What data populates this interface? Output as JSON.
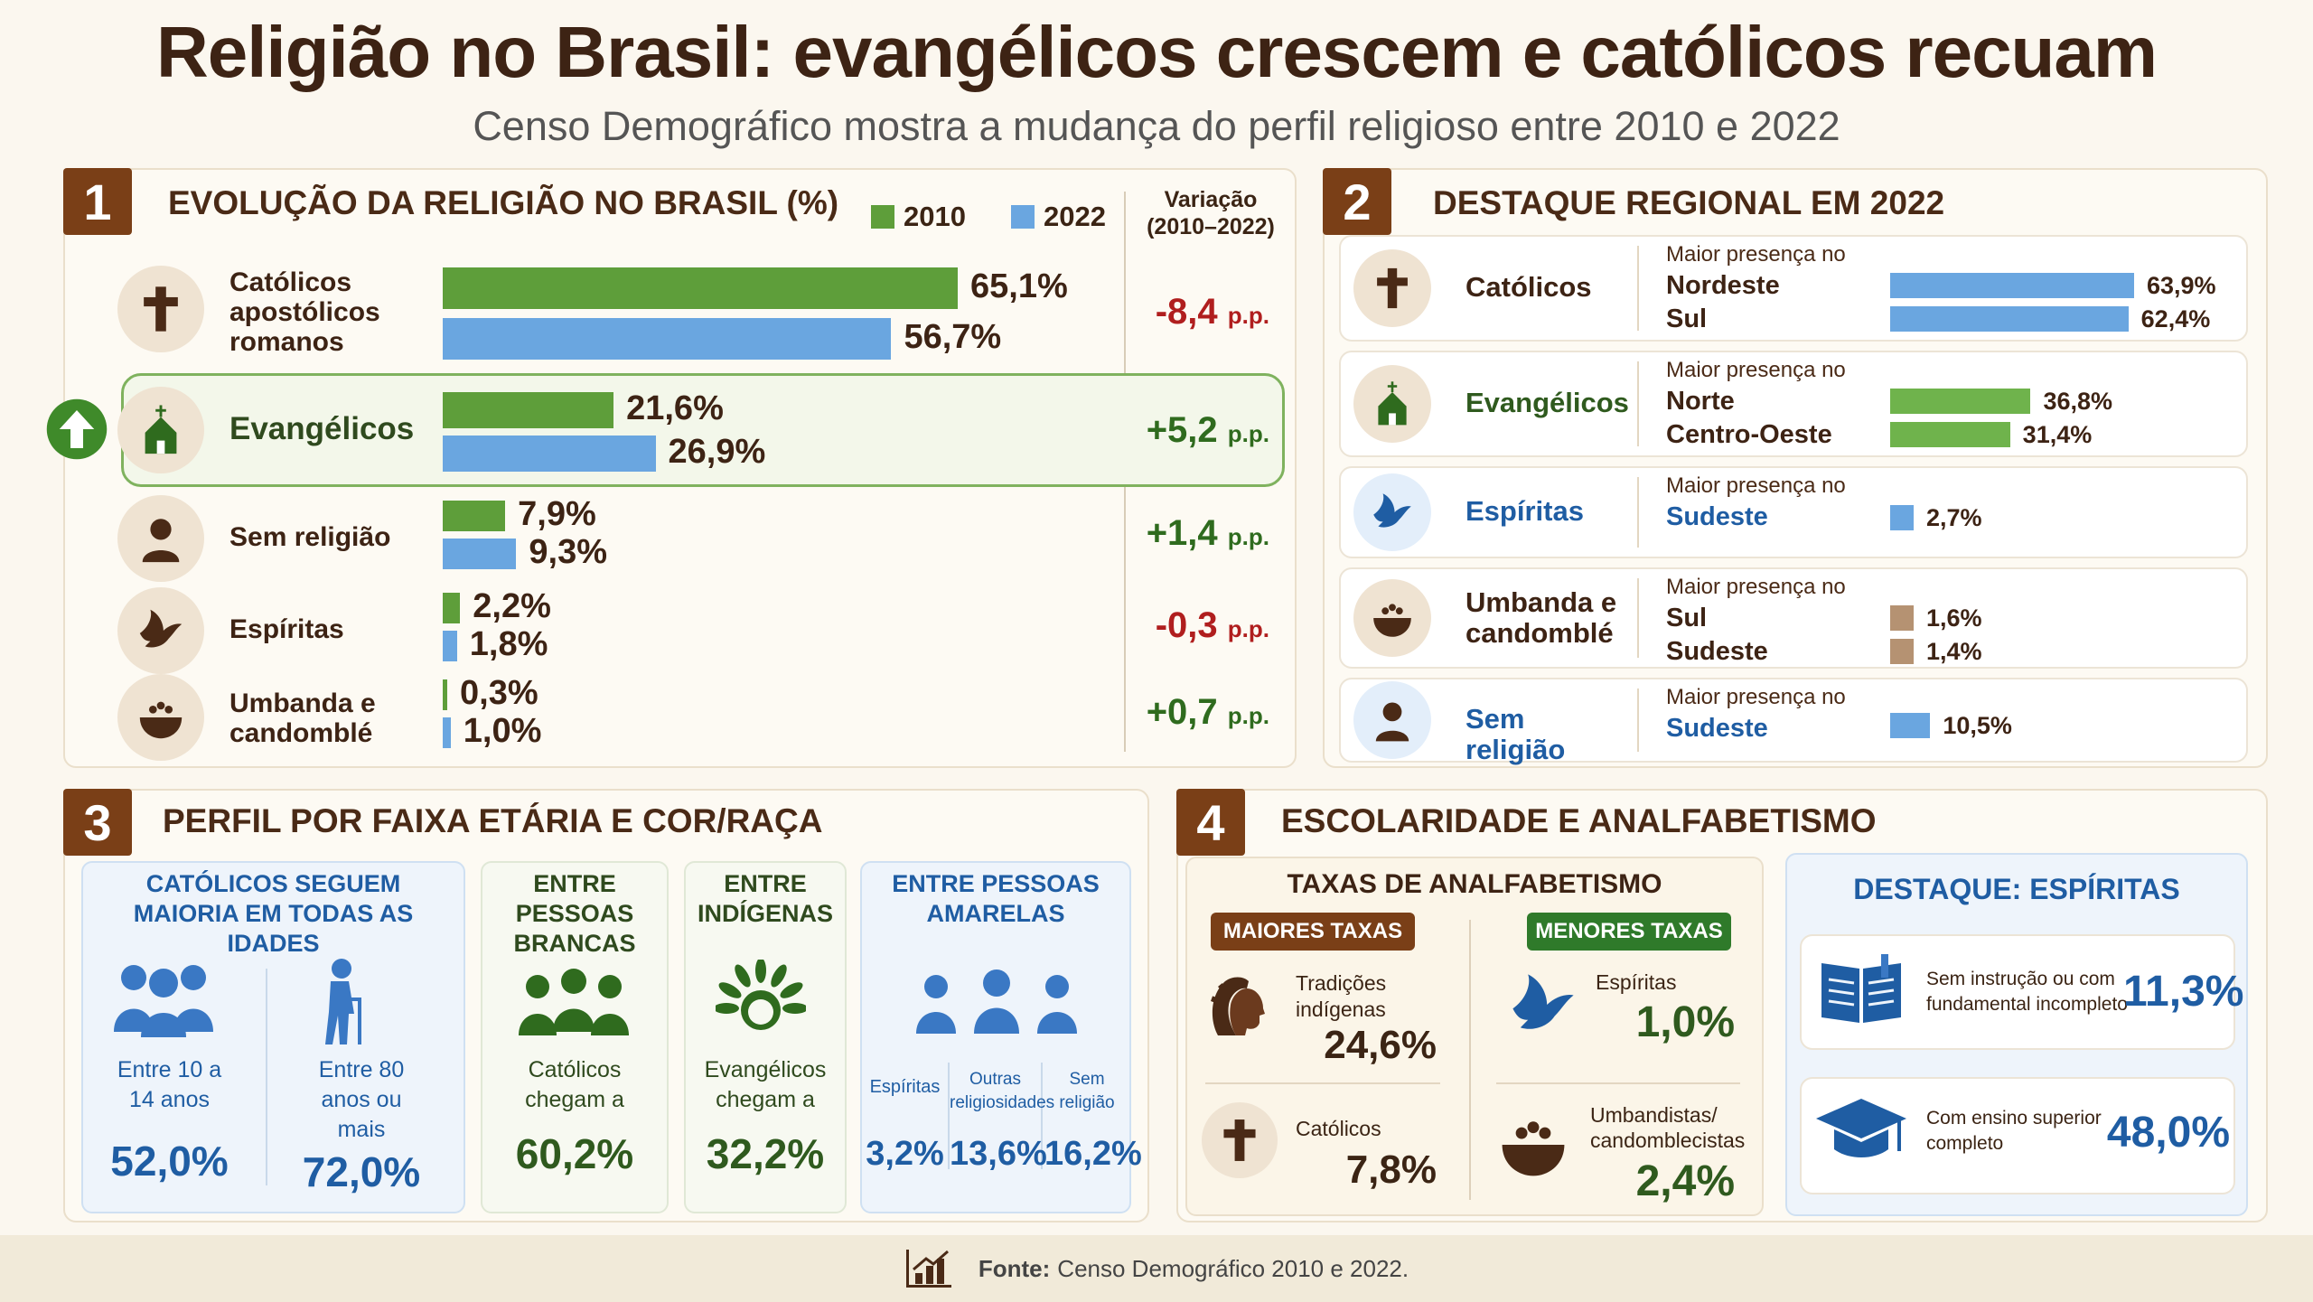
{
  "title": "Religião no Brasil: evangélicos crescem e católicos recuam",
  "subtitle": "Censo Demográfico mostra a mudança do perfil religioso entre 2010 e 2022",
  "colors": {
    "y2010": "#5e9e3a",
    "y2022": "#6aa6e0",
    "negative": "#b01e1e",
    "positive": "#2f6b1e",
    "brown": "#7a3f17",
    "tan": "#b59272"
  },
  "panel1": {
    "number": "1",
    "title": "EVOLUÇÃO DA RELIGIÃO NO BRASIL (%)",
    "legend_2010": "2010",
    "legend_2022": "2022",
    "variation_header": "Variação",
    "variation_sub": "(2010–2022)",
    "rows": [
      {
        "label": "Católicos apostólicos romanos",
        "label_lines": [
          "Católicos",
          "apostólicos",
          "romanos"
        ],
        "icon": "cross-icon",
        "v2010": "65,1%",
        "v2022": "56,7%",
        "variation": "-8,4",
        "unit": "p.p."
      },
      {
        "label": "Evangélicos",
        "label_lines": [
          "Evangélicos"
        ],
        "icon": "church-icon",
        "v2010": "21,6%",
        "v2022": "26,9%",
        "variation": "+5,2",
        "unit": "p.p."
      },
      {
        "label": "Sem religião",
        "label_lines": [
          "Sem religião"
        ],
        "icon": "person-icon",
        "v2010": "7,9%",
        "v2022": "9,3%",
        "variation": "+1,4",
        "unit": "p.p."
      },
      {
        "label": "Espíritas",
        "label_lines": [
          "Espíritas"
        ],
        "icon": "dove-icon",
        "v2010": "2,2%",
        "v2022": "1,8%",
        "variation": "-0,3",
        "unit": "p.p."
      },
      {
        "label": "Umbanda e candomblé",
        "label_lines": [
          "Umbanda e",
          "candomblé"
        ],
        "icon": "offering-bowl-icon",
        "v2010": "0,3%",
        "v2022": "1,0%",
        "variation": "+0,7",
        "unit": "p.p."
      }
    ]
  },
  "chart_data": {
    "type": "bar",
    "title": "EVOLUÇÃO DA RELIGIÃO NO BRASIL (%)",
    "categories": [
      "Católicos apostólicos romanos",
      "Evangélicos",
      "Sem religião",
      "Espíritas",
      "Umbanda e candomblé"
    ],
    "series": [
      {
        "name": "2010",
        "values": [
          65.1,
          21.6,
          7.9,
          2.2,
          0.3
        ]
      },
      {
        "name": "2022",
        "values": [
          56.7,
          26.9,
          9.3,
          1.8,
          1.0
        ]
      }
    ],
    "variation_pp": [
      -8.4,
      5.2,
      1.4,
      -0.3,
      0.7
    ],
    "legend": "top-right",
    "grid": false
  },
  "panel2": {
    "number": "2",
    "title": "DESTAQUE REGIONAL EM 2022",
    "intro": "Maior presença no",
    "rows": [
      {
        "label": "Católicos",
        "icon": "cross-icon",
        "regions": [
          "Nordeste",
          "Sul"
        ],
        "values": [
          "63,9%",
          "62,4%"
        ],
        "nums": [
          63.9,
          62.4
        ],
        "color": "#6aa6e0",
        "label_color": "#3d2314"
      },
      {
        "label": "Evangélicos",
        "icon": "church-icon",
        "regions": [
          "Norte",
          "Centro-Oeste"
        ],
        "values": [
          "36,8%",
          "31,4%"
        ],
        "nums": [
          36.8,
          31.4
        ],
        "color": "#6fb34c",
        "label_color": "#2f5a1e"
      },
      {
        "label": "Espíritas",
        "icon": "dove-icon",
        "regions": [
          "Sudeste"
        ],
        "values": [
          "2,7%"
        ],
        "nums": [
          2.7
        ],
        "color": "#6aa6e0",
        "label_color": "#1f5da3"
      },
      {
        "label": "Umbanda e candomblé",
        "icon": "offering-bowl-icon",
        "regions": [
          "Sul",
          "Sudeste"
        ],
        "values": [
          "1,6%",
          "1,4%"
        ],
        "nums": [
          1.6,
          1.4
        ],
        "color": "#b59272",
        "label_color": "#3d2314"
      },
      {
        "label": "Sem religião",
        "icon": "person-icon",
        "regions": [
          "Sudeste"
        ],
        "values": [
          "10,5%"
        ],
        "nums": [
          10.5
        ],
        "color": "#6aa6e0",
        "label_color": "#1f5da3"
      }
    ]
  },
  "panel3": {
    "number": "3",
    "title": "PERFIL POR FAIXA ETÁRIA E COR/RAÇA",
    "box1": {
      "title": "CATÓLICOS SEGUEM MAIORIA EM TODAS AS IDADES",
      "left_label": "Entre 10 a 14 anos",
      "left_value": "52,0%",
      "right_label": "Entre 80 anos ou mais",
      "right_value": "72,0%"
    },
    "box2": {
      "title": "ENTRE PESSOAS BRANCAS",
      "label": "Católicos chegam a",
      "value": "60,2%"
    },
    "box3": {
      "title": "ENTRE INDÍGENAS",
      "label": "Evangélicos chegam a",
      "value": "32,2%"
    },
    "box4": {
      "title": "ENTRE PESSOAS AMARELAS",
      "cols": [
        {
          "label": "Espíritas",
          "value": "3,2%"
        },
        {
          "label": "Outras religiosidades",
          "value": "13,6%"
        },
        {
          "label": "Sem religião",
          "value": "16,2%"
        }
      ]
    }
  },
  "panel4": {
    "number": "4",
    "title": "ESCOLARIDADE E ANALFABETISMO",
    "illiteracy_title": "TAXAS DE ANALFABETISMO",
    "higher_label": "MAIORES TAXAS",
    "lower_label": "MENORES TAXAS",
    "higher": [
      {
        "label": "Tradições indígenas",
        "value": "24,6%",
        "icon": "indigenous-headdress-icon"
      },
      {
        "label": "Católicos",
        "value": "7,8%",
        "icon": "cross-icon"
      }
    ],
    "lower": [
      {
        "label": "Espíritas",
        "value": "1,0%",
        "icon": "dove-icon"
      },
      {
        "label": "Umbandistas/ candomblecistas",
        "value": "2,4%",
        "icon": "offering-bowl-icon"
      }
    ],
    "highlight_title": "DESTAQUE: ESPÍRITAS",
    "highlights": [
      {
        "label": "Sem instrução ou com fundamental incompleto",
        "value": "11,3%",
        "icon": "book-icon"
      },
      {
        "label": "Com ensino superior completo",
        "value": "48,0%",
        "icon": "graduation-cap-icon"
      }
    ]
  },
  "footer": {
    "source_label": "Fonte:",
    "source_text": "Censo Demográfico 2010 e 2022.",
    "icon": "bar-chart-icon"
  }
}
